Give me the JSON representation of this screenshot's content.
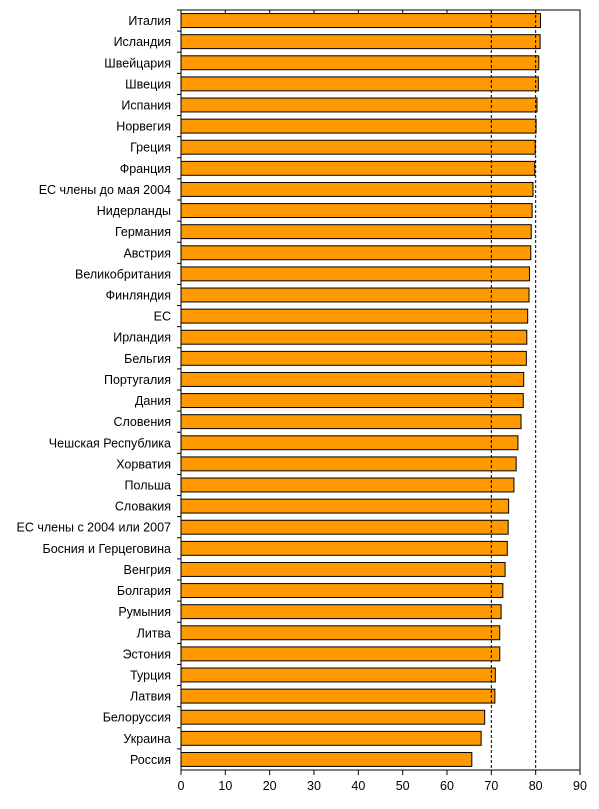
{
  "chart_data": {
    "type": "bar",
    "orientation": "horizontal",
    "title": "",
    "xlabel": "",
    "ylabel": "",
    "xlim": [
      0,
      90
    ],
    "xticks": [
      0,
      10,
      20,
      30,
      40,
      50,
      60,
      70,
      80,
      90
    ],
    "reference_lines": [
      70,
      80
    ],
    "grid": false,
    "bar_color": "#FF9900",
    "bar_edge_color": "#000000",
    "categories": [
      "Италия",
      "Исландия",
      "Швейцария",
      "Швеция",
      "Испания",
      "Норвегия",
      "Греция",
      "Франция",
      "ЕС члены до мая 2004",
      "Нидерланды",
      "Германия",
      "Австрия",
      "Великобритания",
      "Финляндия",
      "ЕС",
      "Ирландия",
      "Бельгия",
      "Португалия",
      "Дания",
      "Словения",
      "Чешская Республика",
      "Хорватия",
      "Польша",
      "Словакия",
      "ЕС члены с 2004 или 2007",
      "Босния и Герцеговина",
      "Венгрия",
      "Болгария",
      "Румыния",
      "Литва",
      "Эстония",
      "Турция",
      "Латвия",
      "Белоруссия",
      "Украина",
      "Россия"
    ],
    "values": [
      81.1,
      81.0,
      80.7,
      80.6,
      80.3,
      80.1,
      79.9,
      79.8,
      79.4,
      79.2,
      79.0,
      78.9,
      78.6,
      78.5,
      78.2,
      78.0,
      77.9,
      77.3,
      77.2,
      76.7,
      76.0,
      75.6,
      75.1,
      73.9,
      73.8,
      73.6,
      73.1,
      72.6,
      72.2,
      71.9,
      71.9,
      70.9,
      70.8,
      68.5,
      67.7,
      65.6
    ]
  }
}
